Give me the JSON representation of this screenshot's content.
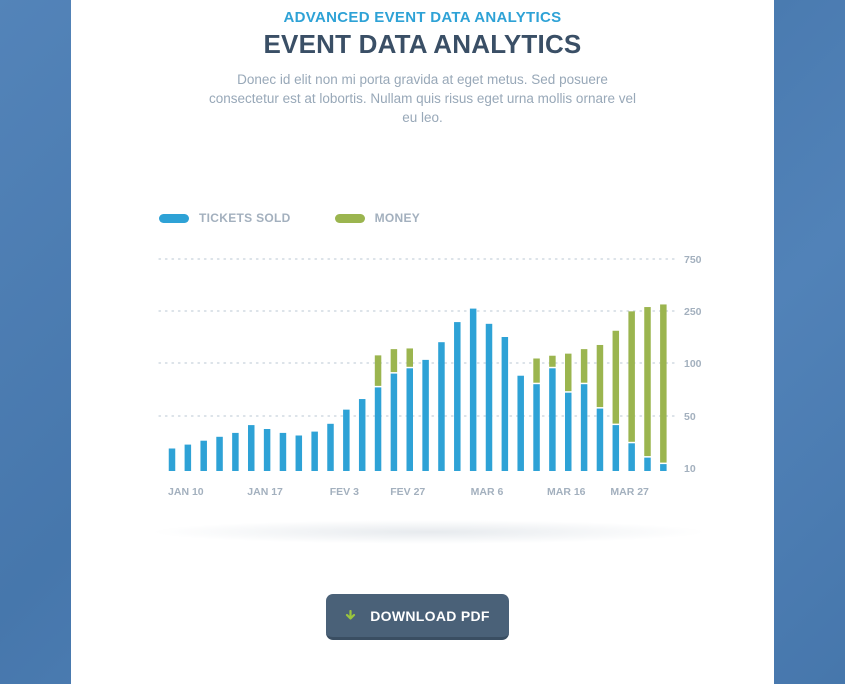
{
  "header": {
    "eyebrow": "ADVANCED EVENT DATA ANALYTICS",
    "title": "EVENT DATA ANALYTICS",
    "description": "Donec id elit non mi porta gravida at eget metus. Sed posuere consectetur est at lobortis. Nullam quis risus eget urna mollis ornare vel eu leo."
  },
  "download": {
    "label": "DOWNLOAD PDF",
    "icon": "download-arrow-icon"
  },
  "colors": {
    "tickets": "#2ea2d6",
    "money": "#9bb54f",
    "grid": "#c8d2dc",
    "axis_text": "#a3b0be"
  },
  "chart_data": {
    "type": "bar",
    "legend_position": "top-left",
    "grid": true,
    "y_tick_labels": [
      "10",
      "50",
      "100",
      "250",
      "750"
    ],
    "x_tick_labels": [
      "JAN 10",
      "JAN 17",
      "FEV 3",
      "FEV 27",
      "MAR 6",
      "MAR 16",
      "MAR 27"
    ],
    "series": [
      {
        "name": "TICKETS SOLD",
        "values": [
          25,
          28,
          31,
          34,
          37,
          43,
          40,
          37,
          35,
          38,
          44,
          56,
          66,
          77,
          90,
          95,
          109,
          160,
          218,
          273,
          213,
          175,
          88,
          80,
          95,
          72,
          80,
          57,
          43,
          29,
          18,
          13
        ]
      },
      {
        "name": "MONEY",
        "values": [
          0,
          0,
          0,
          0,
          0,
          0,
          0,
          0,
          0,
          0,
          0,
          0,
          0,
          45,
          50,
          47,
          0,
          0,
          0,
          0,
          0,
          0,
          0,
          33,
          26,
          55,
          60,
          95,
          150,
          220,
          270,
          300
        ]
      }
    ]
  }
}
